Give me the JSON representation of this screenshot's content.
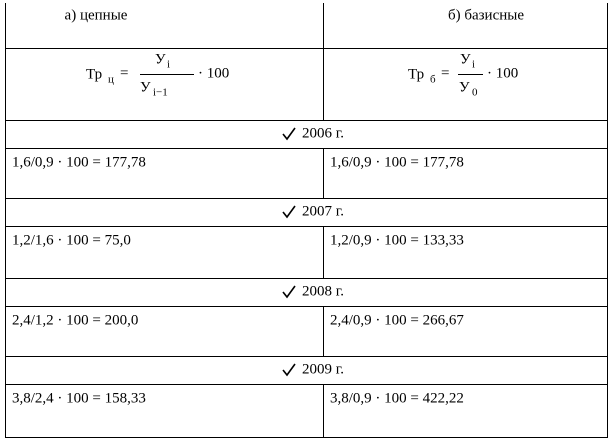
{
  "header": {
    "chain": "а) цепные",
    "base": "б) базисные"
  },
  "formulas": {
    "chain": {
      "lhs": "Тр",
      "lhs_sub": "ц",
      "eq": "=",
      "num": "У",
      "num_sub": "i",
      "den": "У",
      "den_sub": "i−1",
      "tail": "· 100"
    },
    "base": {
      "lhs": "Тр",
      "lhs_sub": "б",
      "eq": "=",
      "num": "У",
      "num_sub": "i",
      "den": "У",
      "den_sub": "0",
      "tail": "· 100"
    }
  },
  "rows": [
    {
      "year": "2006 г.",
      "chain": "1,6/0,9 · 100 = 177,78",
      "base": "1,6/0,9 · 100 = 177,78"
    },
    {
      "year": "2007 г.",
      "chain": "1,2/1,6 · 100 = 75,0",
      "base": "1,2/0,9 · 100 = 133,33"
    },
    {
      "year": "2008 г.",
      "chain": "2,4/1,2 · 100 = 200,0",
      "base": "2,4/0,9 · 100 = 266,67"
    },
    {
      "year": "2009 г.",
      "chain": "3,8/2,4 · 100 = 158,33",
      "base": "3,8/0,9 · 100 = 422,22"
    }
  ]
}
